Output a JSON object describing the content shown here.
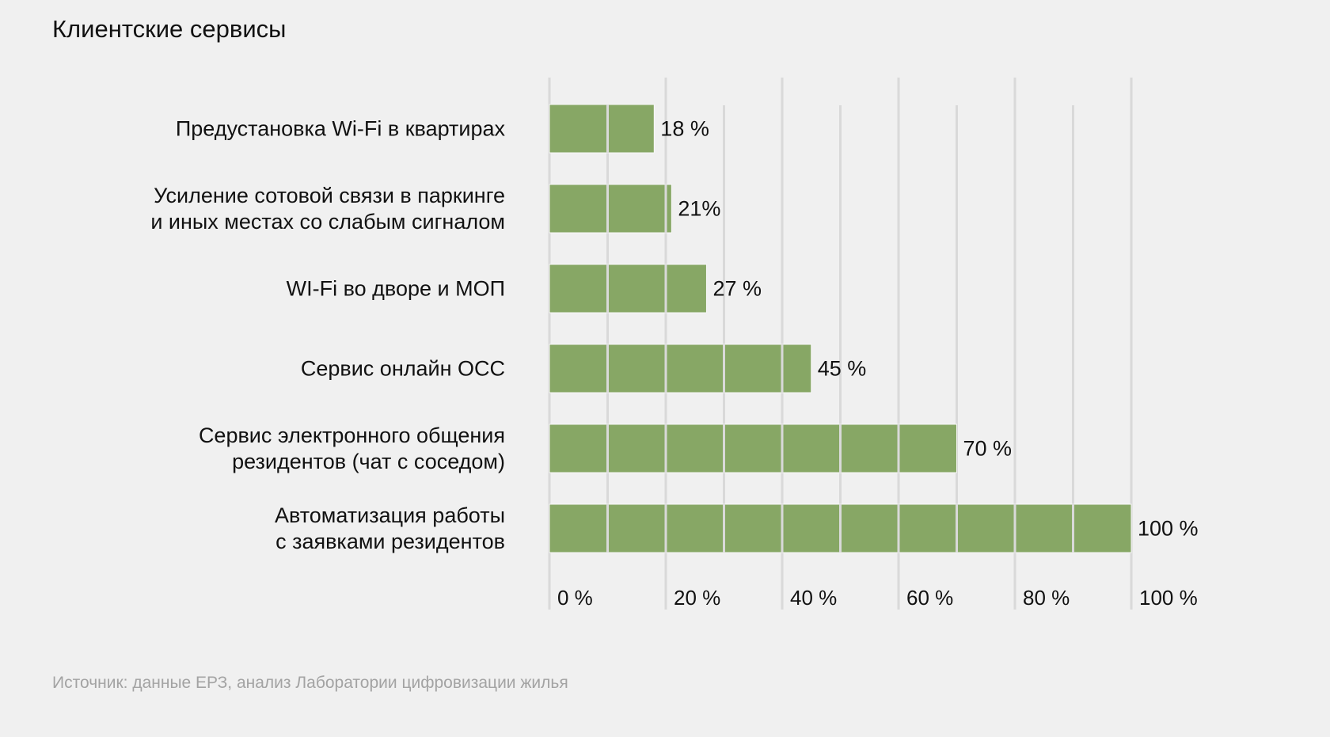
{
  "title": "Клиентские сервисы",
  "source": "Источник: данные ЕРЗ, анализ Лаборатории цифровизации жилья",
  "colors": {
    "bar": "#87a765",
    "gridline": "#d9d9d9",
    "background": "#f0f0f0",
    "source_text": "#a3a3a3"
  },
  "chart_data": {
    "type": "bar",
    "orientation": "horizontal",
    "title": "Клиентские сервисы",
    "xlabel": "",
    "ylabel": "",
    "xlim": [
      0,
      100
    ],
    "grid": true,
    "major_ticks": [
      0,
      20,
      40,
      60,
      80,
      100
    ],
    "minor_ticks": [
      10,
      30,
      50,
      70,
      90
    ],
    "tick_labels": [
      "0 %",
      "20 %",
      "40 %",
      "60 %",
      "80 %",
      "100 %"
    ],
    "categories": [
      [
        "Предустановка Wi-Fi в квартирах"
      ],
      [
        "Усиление сотовой связи в паркинге",
        "и иных местах со слабым сигналом"
      ],
      [
        "WI-Fi во дворе и МОП"
      ],
      [
        "Сервис онлайн ОСС"
      ],
      [
        "Сервис электронного общения",
        "резидентов (чат с соседом)"
      ],
      [
        "Автоматизация работы",
        "с заявками резидентов"
      ]
    ],
    "values": [
      18,
      21,
      27,
      45,
      70,
      100
    ],
    "value_labels": [
      "18 %",
      "21%",
      "27 %",
      "45 %",
      "70 %",
      "100 %"
    ],
    "legend": "none"
  }
}
